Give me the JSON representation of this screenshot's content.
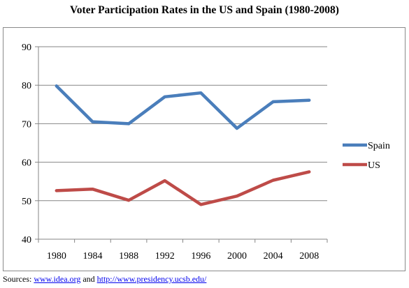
{
  "chart_data": {
    "type": "line",
    "title": "Voter Participation Rates in the US and Spain (1980-2008)",
    "xlabel": "",
    "ylabel": "",
    "categories": [
      "1980",
      "1984",
      "1988",
      "1992",
      "1996",
      "2000",
      "2004",
      "2008"
    ],
    "ylim": [
      40,
      90
    ],
    "yticks": [
      40,
      50,
      60,
      70,
      80,
      90
    ],
    "grid": true,
    "legend_position": "right",
    "series": [
      {
        "name": "Spain",
        "color": "#4a7ebb",
        "values": [
          79.8,
          70.5,
          70.0,
          77.0,
          78.0,
          68.8,
          75.7,
          76.1
        ]
      },
      {
        "name": "US",
        "color": "#be4b48",
        "values": [
          52.6,
          53.0,
          50.1,
          55.2,
          49.0,
          51.2,
          55.3,
          57.5
        ]
      }
    ]
  },
  "footer": {
    "prefix": "Sources:",
    "link1": "www.idea.org",
    "conjunction": "and",
    "link2": "http://www.presidency.ucsb.edu/"
  }
}
